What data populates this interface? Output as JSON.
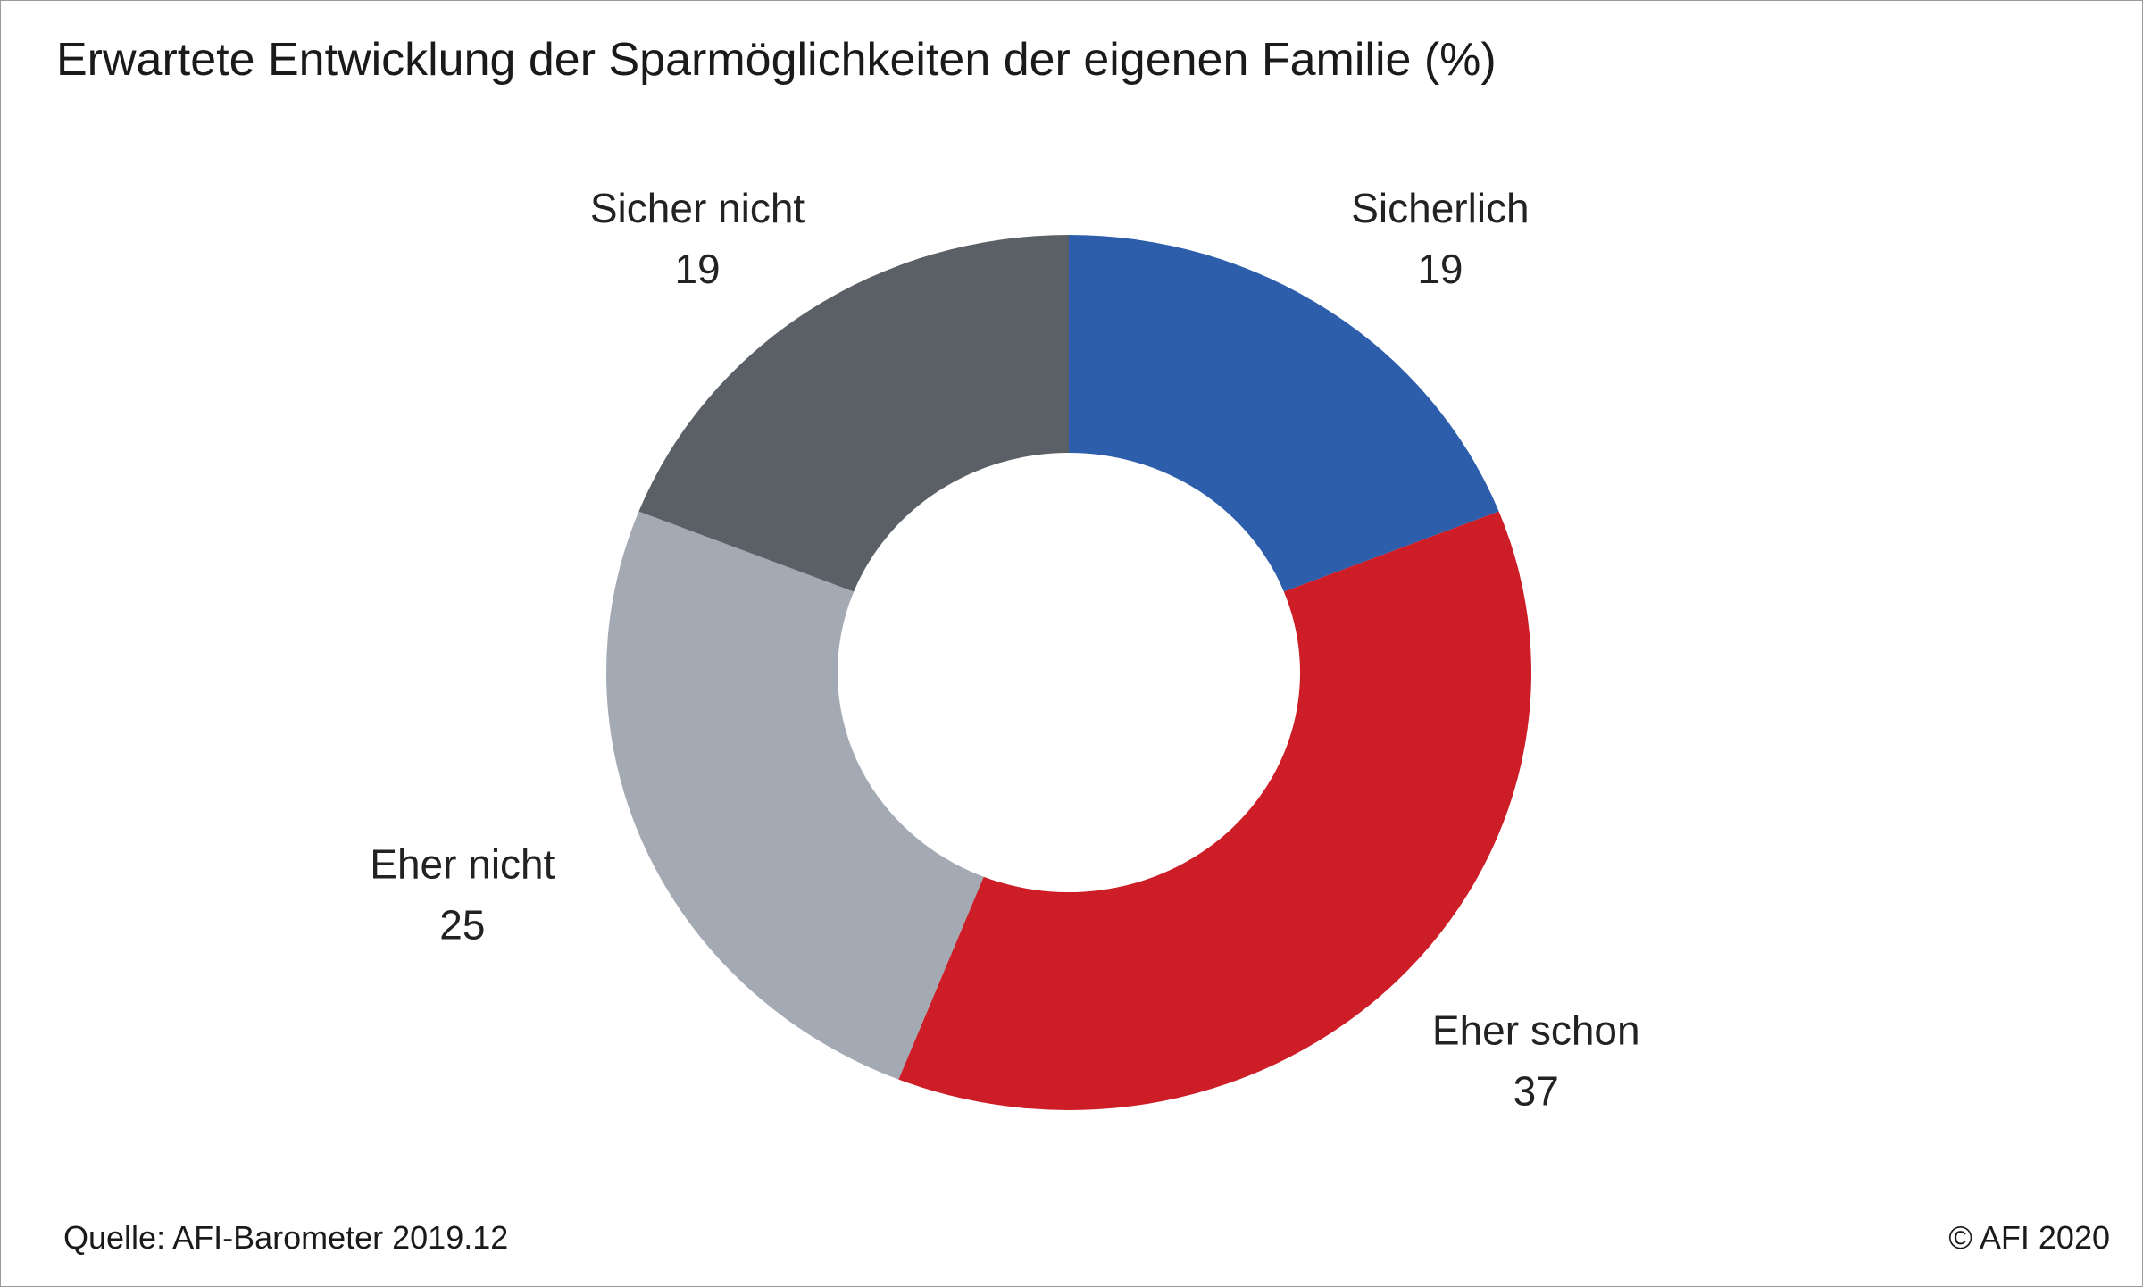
{
  "chart_data": {
    "type": "pie",
    "variant": "donut",
    "title": "Erwartete Entwicklung der Sparmöglichkeiten der eigenen Familie (%)",
    "categories": [
      "Sicherlich",
      "Eher schon",
      "Eher nicht",
      "Sicher nicht"
    ],
    "values": [
      19,
      37,
      25,
      19
    ],
    "colors": [
      "#2c5eab",
      "#cd1e28",
      "#a3aab3",
      "#5b6067"
    ],
    "start": "12 o'clock",
    "direction": "clockwise",
    "legend": "none (labels next to slices)"
  },
  "footer": {
    "source": "Quelle: AFI-Barometer 2019.12",
    "copyright": "© AFI 2020"
  }
}
